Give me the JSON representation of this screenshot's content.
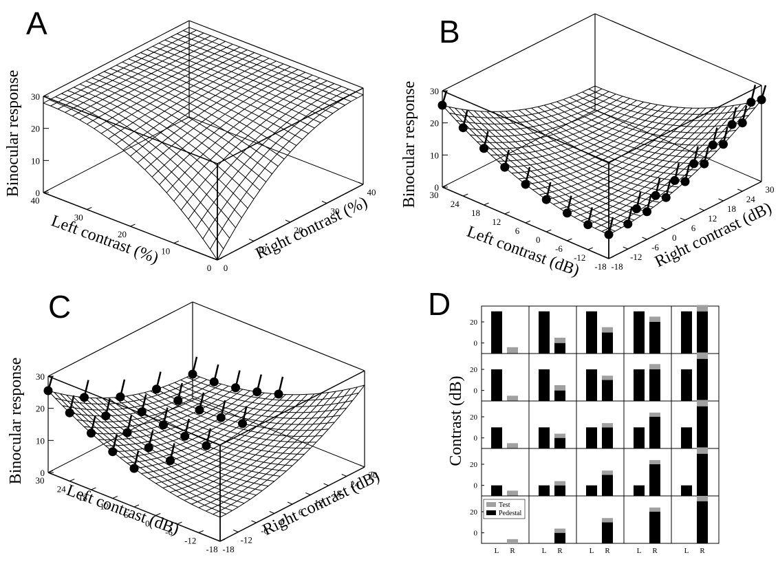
{
  "chart_data": [
    {
      "panel": "A",
      "type": "surface3d",
      "zlabel": "Binocular response",
      "xlabel": "Left contrast (%)",
      "ylabel": "Right contrast (%)",
      "zticks": [
        "0",
        "10",
        "20",
        "30"
      ],
      "xticks": [
        "40",
        "30",
        "20",
        "10",
        "0"
      ],
      "yticks": [
        "0",
        "10",
        "20",
        "30",
        "40"
      ],
      "xlim": [
        0,
        40
      ],
      "ylim": [
        0,
        40
      ],
      "zlim": [
        0,
        30
      ],
      "points": []
    },
    {
      "panel": "B",
      "type": "surface3d",
      "zlabel": "Binocular response",
      "xlabel": "Left contrast (dB)",
      "ylabel": "Right contrast (dB)",
      "zticks": [
        "0",
        "10",
        "20",
        "30"
      ],
      "xticks": [
        "30",
        "24",
        "18",
        "12",
        "6",
        "0",
        "-6",
        "-12",
        "-18"
      ],
      "yticks": [
        "-18",
        "-12",
        "-6",
        "0",
        "6",
        "12",
        "18",
        "24",
        "30"
      ],
      "xlim": [
        -18,
        30
      ],
      "ylim": [
        -18,
        30
      ],
      "zlim": [
        0,
        30
      ],
      "points": [
        {
          "l": 30,
          "r": -18
        },
        {
          "l": 24,
          "r": -18
        },
        {
          "l": 18,
          "r": -18
        },
        {
          "l": 12,
          "r": -18
        },
        {
          "l": 6,
          "r": -18
        },
        {
          "l": 0,
          "r": -18
        },
        {
          "l": -6,
          "r": -18
        },
        {
          "l": -12,
          "r": -18
        },
        {
          "l": -18,
          "r": 30
        },
        {
          "l": -18,
          "r": 24
        },
        {
          "l": -18,
          "r": 18
        },
        {
          "l": -18,
          "r": 12
        },
        {
          "l": -18,
          "r": 6
        },
        {
          "l": -18,
          "r": 0
        },
        {
          "l": -18,
          "r": -6
        },
        {
          "l": -18,
          "r": -12
        },
        {
          "l": -15,
          "r": 30
        },
        {
          "l": -15,
          "r": 24
        },
        {
          "l": -15,
          "r": 18
        },
        {
          "l": -15,
          "r": 12
        },
        {
          "l": -15,
          "r": 6
        },
        {
          "l": -15,
          "r": 0
        },
        {
          "l": -15,
          "r": -6
        },
        {
          "l": -20,
          "r": -18
        }
      ]
    },
    {
      "panel": "C",
      "type": "surface3d",
      "zlabel": "Binocular response",
      "xlabel": "Left contrast (dB)",
      "ylabel": "Right contrast (dB)",
      "zticks": [
        "0",
        "10",
        "20",
        "30"
      ],
      "xticks": [
        "30",
        "24",
        "18",
        "12",
        "6",
        "0",
        "-6",
        "-12",
        "-18"
      ],
      "yticks": [
        "-18",
        "-12",
        "-6",
        "0",
        "6",
        "12",
        "18",
        "24",
        "30"
      ],
      "xlim": [
        -18,
        30
      ],
      "ylim": [
        -18,
        30
      ],
      "zlim": [
        0,
        30
      ],
      "points": [
        {
          "l": 30,
          "r": 30
        },
        {
          "l": 24,
          "r": 30
        },
        {
          "l": 18,
          "r": 30
        },
        {
          "l": 12,
          "r": 30
        },
        {
          "l": 6,
          "r": 30
        },
        {
          "l": 30,
          "r": 18
        },
        {
          "l": 24,
          "r": 18
        },
        {
          "l": 18,
          "r": 18
        },
        {
          "l": 12,
          "r": 18
        },
        {
          "l": 6,
          "r": 18
        },
        {
          "l": 30,
          "r": 6
        },
        {
          "l": 24,
          "r": 6
        },
        {
          "l": 18,
          "r": 6
        },
        {
          "l": 12,
          "r": 6
        },
        {
          "l": 6,
          "r": 6
        },
        {
          "l": 30,
          "r": -6
        },
        {
          "l": 24,
          "r": -6
        },
        {
          "l": 18,
          "r": -6
        },
        {
          "l": 12,
          "r": -6
        },
        {
          "l": 6,
          "r": -6
        },
        {
          "l": 30,
          "r": -18
        },
        {
          "l": 24,
          "r": -18
        },
        {
          "l": 18,
          "r": -18
        },
        {
          "l": 12,
          "r": -18
        },
        {
          "l": 6,
          "r": -18
        }
      ]
    },
    {
      "panel": "D",
      "type": "bar",
      "ylabel": "Contrast (dB)",
      "categories": [
        "L",
        "R"
      ],
      "yticks": [
        "0",
        "20"
      ],
      "ylim": [
        -10,
        35
      ],
      "legend": [
        "Test",
        "Pedestal"
      ],
      "legend_position": "inside-bottom-left",
      "colors": {
        "test": "#a0a0a0",
        "pedestal": "#000000"
      },
      "series": [
        {
          "name": "Test"
        },
        {
          "name": "Pedestal"
        }
      ],
      "grid": [
        [
          {
            "L": 30,
            "R": -10,
            "test": 6
          },
          {
            "L": 30,
            "R": 0,
            "test": 5
          },
          {
            "L": 30,
            "R": 10,
            "test": 5
          },
          {
            "L": 30,
            "R": 20,
            "test": 5
          },
          {
            "L": 30,
            "R": 30,
            "test": 6
          }
        ],
        [
          {
            "L": 20,
            "R": -10,
            "test": 5
          },
          {
            "L": 20,
            "R": 0,
            "test": 5
          },
          {
            "L": 20,
            "R": 10,
            "test": 4
          },
          {
            "L": 20,
            "R": 20,
            "test": 5
          },
          {
            "L": 20,
            "R": 30,
            "test": 6
          }
        ],
        [
          {
            "L": 10,
            "R": -10,
            "test": 5
          },
          {
            "L": 10,
            "R": 0,
            "test": 4
          },
          {
            "L": 10,
            "R": 10,
            "test": 4
          },
          {
            "L": 10,
            "R": 20,
            "test": 4
          },
          {
            "L": 10,
            "R": 30,
            "test": 6
          }
        ],
        [
          {
            "L": 0,
            "R": -10,
            "test": 5
          },
          {
            "L": 0,
            "R": 0,
            "test": 4
          },
          {
            "L": 0,
            "R": 10,
            "test": 4
          },
          {
            "L": 0,
            "R": 20,
            "test": 4
          },
          {
            "L": 0,
            "R": 30,
            "test": 6
          }
        ],
        [
          {
            "L": -10,
            "R": -10,
            "test": 4
          },
          {
            "L": -10,
            "R": 0,
            "test": 4
          },
          {
            "L": -10,
            "R": 10,
            "test": 4
          },
          {
            "L": -10,
            "R": 20,
            "test": 4
          },
          {
            "L": -10,
            "R": 30,
            "test": 5
          }
        ]
      ]
    }
  ],
  "colors": {
    "ink": "#000000",
    "background": "#ffffff",
    "test_bar": "#a0a0a0"
  }
}
